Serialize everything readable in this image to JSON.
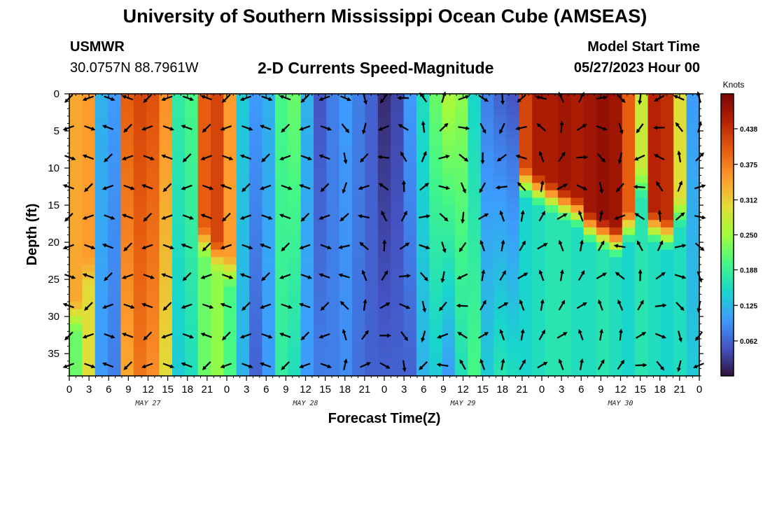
{
  "header": {
    "main_title": "University of Southern Mississippi Ocean Cube (AMSEAS)",
    "station_id": "USMWR",
    "station_coords": "30.0757N  88.7961W",
    "chart_title": "2-D Currents Speed-Magnitude",
    "model_start_label": "Model Start Time",
    "model_start_value": "05/27/2023 Hour 00"
  },
  "footer": {
    "title": "University of Southern Mississippi Ocean Cube (AMSEAS)"
  },
  "chart_data": {
    "type": "heatmap",
    "title": "2-D Currents Speed-Magnitude",
    "xlabel": "Forecast Time(Z)",
    "ylabel": "Depth (ft)",
    "xlim": [
      0,
      96
    ],
    "ylim": [
      0,
      38
    ],
    "y_inverted": true,
    "x_tick_labels": [
      "0",
      "3",
      "6",
      "9",
      "12",
      "15",
      "18",
      "21",
      "0",
      "3",
      "6",
      "9",
      "12",
      "15",
      "18",
      "21",
      "0",
      "3",
      "6",
      "9",
      "12",
      "15",
      "18",
      "21",
      "0",
      "3",
      "6",
      "9",
      "12",
      "15",
      "18",
      "21",
      "0"
    ],
    "x_date_labels": [
      {
        "label": "MAY 27",
        "hour": 12
      },
      {
        "label": "MAY 28",
        "hour": 36
      },
      {
        "label": "MAY 29",
        "hour": 60
      },
      {
        "label": "MAY 30",
        "hour": 84
      }
    ],
    "y_ticks": [
      0,
      5,
      10,
      15,
      20,
      25,
      30,
      35
    ],
    "colorbar": {
      "title": "Knots",
      "min": 0,
      "max": 0.5,
      "ticks": [
        0.062,
        0.125,
        0.188,
        0.25,
        0.312,
        0.375,
        0.438
      ],
      "tick_labels": [
        "0.062",
        "0.125",
        "0.188",
        "0.250",
        "0.312",
        "0.375",
        "0.438"
      ]
    },
    "arrow_depths": [
      0,
      4,
      8,
      12,
      16,
      20,
      24,
      28,
      32,
      36
    ],
    "arrow_hours": [
      0,
      3,
      6,
      9,
      12,
      15,
      18,
      21,
      24,
      27,
      30,
      33,
      36,
      39,
      42,
      45,
      48,
      51,
      54,
      57,
      60,
      63,
      66,
      69,
      72,
      75,
      78,
      81,
      84,
      87,
      90,
      93,
      96
    ],
    "surface_speed_by_hour": [
      0.34,
      0.35,
      0.12,
      0.1,
      0.4,
      0.42,
      0.41,
      0.36,
      0.18,
      0.2,
      0.4,
      0.42,
      0.35,
      0.14,
      0.1,
      0.12,
      0.2,
      0.22,
      0.12,
      0.05,
      0.08,
      0.1,
      0.08,
      0.06,
      0.02,
      0.04,
      0.1,
      0.16,
      0.22,
      0.26,
      0.24,
      0.15,
      0.08,
      0.06,
      0.05,
      0.42,
      0.46,
      0.46,
      0.47,
      0.46,
      0.47,
      0.48,
      0.47,
      0.4,
      0.28,
      0.45,
      0.44,
      0.3,
      0.1
    ],
    "deep_speed_by_hour": [
      0.22,
      0.3,
      0.1,
      0.08,
      0.34,
      0.38,
      0.36,
      0.3,
      0.14,
      0.16,
      0.22,
      0.24,
      0.2,
      0.12,
      0.06,
      0.1,
      0.18,
      0.16,
      0.1,
      0.08,
      0.08,
      0.09,
      0.07,
      0.06,
      0.06,
      0.06,
      0.06,
      0.12,
      0.14,
      0.1,
      0.16,
      0.2,
      0.14,
      0.17,
      0.16,
      0.15,
      0.16,
      0.17,
      0.17,
      0.16,
      0.16,
      0.17,
      0.16,
      0.15,
      0.17,
      0.16,
      0.15,
      0.16,
      0.14
    ],
    "deep_layer_depth_by_hour": [
      30,
      24,
      38,
      38,
      38,
      38,
      38,
      38,
      38,
      38,
      20,
      22,
      24,
      38,
      38,
      38,
      38,
      38,
      38,
      38,
      38,
      38,
      38,
      38,
      38,
      38,
      38,
      38,
      38,
      38,
      38,
      38,
      38,
      38,
      38,
      12,
      13,
      14,
      15,
      16,
      18,
      19,
      20,
      18,
      12,
      18,
      19,
      16,
      38
    ]
  }
}
